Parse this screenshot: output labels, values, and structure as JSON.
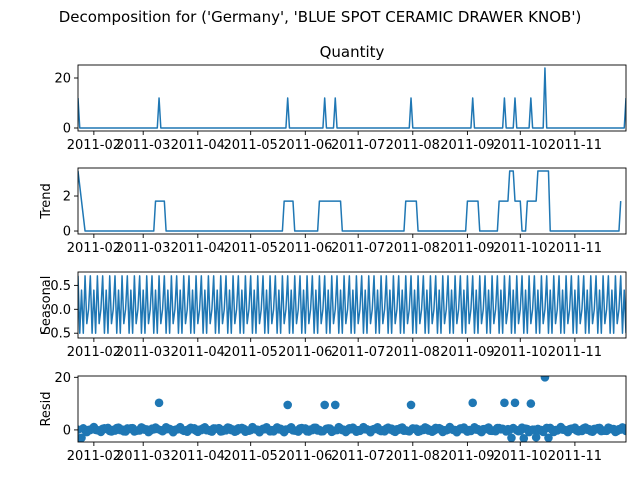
{
  "figure_title": "Decomposition for ('Germany', 'BLUE SPOT CERAMIC DRAWER KNOB')",
  "colors": {
    "series": "#1f77b4",
    "axis": "#000000",
    "background": "#ffffff"
  },
  "chart_data": [
    {
      "type": "line",
      "name": "observed",
      "title": "Quantity",
      "ylabel": "",
      "ylim": [
        -1.2,
        25.2
      ],
      "yticks": [
        0,
        20
      ],
      "yticklabels": [
        "0",
        "20"
      ],
      "baseline": 0,
      "points": [
        {
          "date": "2011-01-23",
          "value": 12
        },
        {
          "date": "2011-03-10",
          "value": 12
        },
        {
          "date": "2011-05-22",
          "value": 12
        },
        {
          "date": "2011-06-12",
          "value": 12
        },
        {
          "date": "2011-06-18",
          "value": 12
        },
        {
          "date": "2011-07-31",
          "value": 12
        },
        {
          "date": "2011-09-04",
          "value": 12
        },
        {
          "date": "2011-09-22",
          "value": 12
        },
        {
          "date": "2011-09-28",
          "value": 12
        },
        {
          "date": "2011-10-07",
          "value": 12
        },
        {
          "date": "2011-10-15",
          "value": 24
        },
        {
          "date": "2011-11-30",
          "value": 12
        }
      ]
    },
    {
      "type": "line",
      "name": "trend",
      "title": "",
      "ylabel": "Trend",
      "ylim": [
        -0.17,
        3.6
      ],
      "yticks": [
        0,
        2
      ],
      "yticklabels": [
        "0",
        "2"
      ],
      "points": [
        {
          "date": "2011-01-23",
          "value": 3.43
        },
        {
          "date": "2011-01-27",
          "value": 0
        },
        {
          "date": "2011-03-07",
          "value": 0
        },
        {
          "date": "2011-03-08",
          "value": 1.71
        },
        {
          "date": "2011-03-13",
          "value": 1.71
        },
        {
          "date": "2011-03-14",
          "value": 0
        },
        {
          "date": "2011-05-19",
          "value": 0
        },
        {
          "date": "2011-05-20",
          "value": 1.71
        },
        {
          "date": "2011-05-25",
          "value": 1.71
        },
        {
          "date": "2011-05-26",
          "value": 0
        },
        {
          "date": "2011-06-08",
          "value": 0
        },
        {
          "date": "2011-06-09",
          "value": 1.71
        },
        {
          "date": "2011-06-21",
          "value": 1.71
        },
        {
          "date": "2011-06-22",
          "value": 0
        },
        {
          "date": "2011-07-27",
          "value": 0
        },
        {
          "date": "2011-07-28",
          "value": 1.71
        },
        {
          "date": "2011-08-03",
          "value": 1.71
        },
        {
          "date": "2011-08-04",
          "value": 0
        },
        {
          "date": "2011-08-31",
          "value": 0
        },
        {
          "date": "2011-09-01",
          "value": 1.71
        },
        {
          "date": "2011-09-07",
          "value": 1.71
        },
        {
          "date": "2011-09-08",
          "value": 0
        },
        {
          "date": "2011-09-18",
          "value": 0
        },
        {
          "date": "2011-09-19",
          "value": 1.71
        },
        {
          "date": "2011-09-24",
          "value": 1.71
        },
        {
          "date": "2011-09-25",
          "value": 3.43
        },
        {
          "date": "2011-09-27",
          "value": 3.43
        },
        {
          "date": "2011-09-28",
          "value": 1.71
        },
        {
          "date": "2011-10-01",
          "value": 1.71
        },
        {
          "date": "2011-10-02",
          "value": 0
        },
        {
          "date": "2011-10-04",
          "value": 0
        },
        {
          "date": "2011-10-05",
          "value": 1.71
        },
        {
          "date": "2011-10-10",
          "value": 1.71
        },
        {
          "date": "2011-10-11",
          "value": 3.43
        },
        {
          "date": "2011-10-17",
          "value": 3.43
        },
        {
          "date": "2011-10-18",
          "value": 0
        },
        {
          "date": "2011-11-26",
          "value": 0
        },
        {
          "date": "2011-11-27",
          "value": 1.71
        }
      ]
    },
    {
      "type": "line",
      "name": "seasonal",
      "title": "",
      "ylabel": "Seasonal",
      "ylim": [
        -0.6,
        0.78
      ],
      "yticks": [
        0.5,
        0.0,
        -0.5
      ],
      "yticklabels": [
        "0.5",
        "0.0",
        "−0.5"
      ],
      "period_days": 7,
      "pattern": [
        0.7,
        -0.5,
        0.4,
        -0.5,
        0.7,
        -0.3,
        0.0
      ],
      "start": "2011-01-23",
      "end": "2011-11-30"
    },
    {
      "type": "scatter",
      "name": "resid",
      "title": "",
      "ylabel": "Resid",
      "ylim": [
        -4.6,
        20.5
      ],
      "yticks": [
        0,
        20
      ],
      "yticklabels": [
        "0",
        "20"
      ],
      "start": "2011-01-23",
      "end": "2011-11-30",
      "noise_amplitude": 1.0,
      "points": [
        {
          "date": "2011-01-24",
          "value": -3.2
        },
        {
          "date": "2011-01-25",
          "value": -3.0
        },
        {
          "date": "2011-03-10",
          "value": 10.3
        },
        {
          "date": "2011-05-22",
          "value": 9.5
        },
        {
          "date": "2011-06-12",
          "value": 9.5
        },
        {
          "date": "2011-06-18",
          "value": 9.5
        },
        {
          "date": "2011-07-31",
          "value": 9.5
        },
        {
          "date": "2011-09-04",
          "value": 10.3
        },
        {
          "date": "2011-09-22",
          "value": 10.3
        },
        {
          "date": "2011-09-26",
          "value": -3.0
        },
        {
          "date": "2011-09-28",
          "value": 10.3
        },
        {
          "date": "2011-10-03",
          "value": -3.2
        },
        {
          "date": "2011-10-07",
          "value": 10.0
        },
        {
          "date": "2011-10-10",
          "value": -2.8
        },
        {
          "date": "2011-10-15",
          "value": 20.0
        },
        {
          "date": "2011-10-17",
          "value": -3.0
        }
      ]
    }
  ],
  "x_axis": {
    "range": [
      "2011-01-23",
      "2011-11-30"
    ],
    "ticks": [
      {
        "date": "2011-02-01",
        "label": "2011-02"
      },
      {
        "date": "2011-03-01",
        "label": "2011-03"
      },
      {
        "date": "2011-04-01",
        "label": "2011-04"
      },
      {
        "date": "2011-05-01",
        "label": "2011-05"
      },
      {
        "date": "2011-06-01",
        "label": "2011-06"
      },
      {
        "date": "2011-07-01",
        "label": "2011-07"
      },
      {
        "date": "2011-08-01",
        "label": "2011-08"
      },
      {
        "date": "2011-09-01",
        "label": "2011-09"
      },
      {
        "date": "2011-10-01",
        "label": "2011-10"
      },
      {
        "date": "2011-11-01",
        "label": "2011-11"
      }
    ]
  }
}
